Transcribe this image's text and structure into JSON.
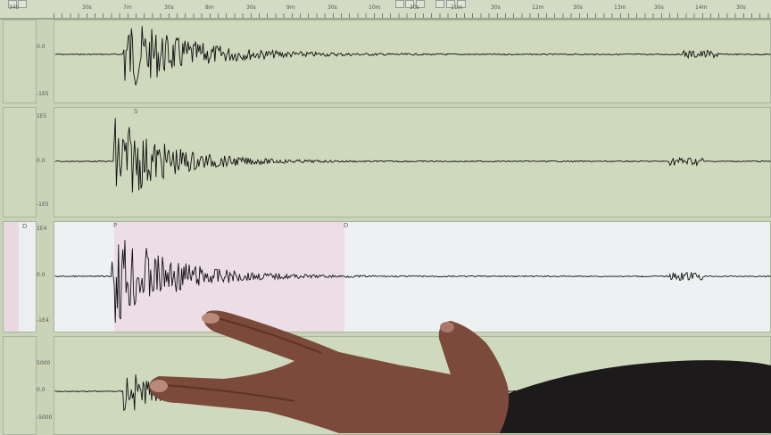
{
  "time_ruler": {
    "labels": [
      "34s",
      "30s",
      "7m",
      "30s",
      "8m",
      "30s",
      "9m",
      "30s",
      "10m",
      "30s",
      "11m",
      "30s",
      "12m",
      "30s",
      "13m",
      "30s",
      "14m",
      "30s"
    ]
  },
  "channels": [
    {
      "axis_labels": [
        "0.0",
        "-1E5"
      ],
      "markers": []
    },
    {
      "axis_labels": [
        "1E5",
        "0.0",
        "-1E5"
      ],
      "markers": [
        "S"
      ]
    },
    {
      "axis_labels": [
        "1E4",
        "0.0",
        "-1E4"
      ],
      "markers": [
        "P",
        "D"
      ],
      "mini_marker": "D"
    },
    {
      "axis_labels": [
        "5000",
        "0.0",
        "-5000"
      ],
      "markers": []
    }
  ],
  "colors": {
    "screen": "#cfd9bd",
    "selected_panel": "#eef1f2",
    "selection": "#ecdde6",
    "trace": "#111111",
    "skin": "#7b4a3a"
  }
}
